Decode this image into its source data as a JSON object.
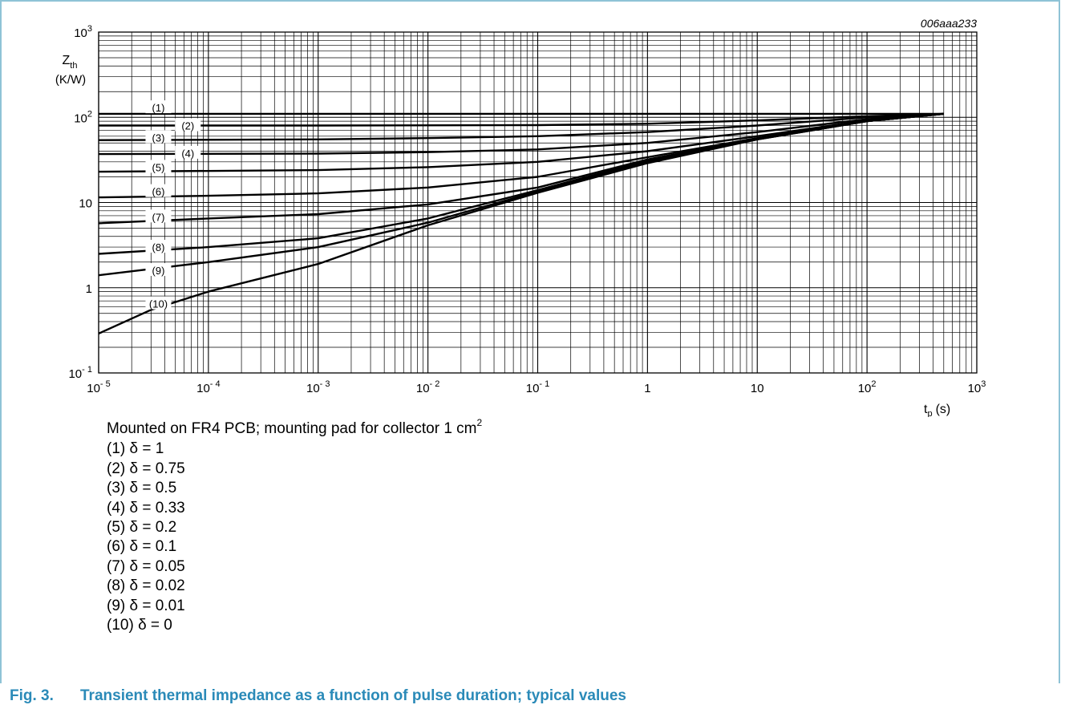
{
  "figure_id": "006aaa233",
  "caption": {
    "number": "Fig. 3.",
    "text": "Transient thermal impedance as a function of pulse duration; typical values"
  },
  "notes": {
    "mounting": "Mounted on FR4 PCB; mounting pad for collector 1 cm",
    "mounting_sup": "2",
    "legend": [
      "(1) δ = 1",
      "(2) δ = 0.75",
      "(3) δ = 0.5",
      "(4) δ = 0.33",
      "(5) δ = 0.2",
      "(6) δ = 0.1",
      "(7) δ = 0.05",
      "(8) δ = 0.02",
      "(9) δ = 0.01",
      "(10) δ = 0"
    ]
  },
  "colors": {
    "caption": "#2a8ab8",
    "frame": "#8fc3d6",
    "curve": "#000000",
    "grid": "#000000"
  },
  "chart_data": {
    "type": "line",
    "xlabel": "t",
    "xlabel_sub": "p",
    "xlabel_unit": "(s)",
    "ylabel": "Z",
    "ylabel_sub": "th",
    "ylabel_unit": "(K/W)",
    "x_scale": "log",
    "y_scale": "log",
    "xlim": [
      1e-05,
      1000
    ],
    "ylim": [
      0.1,
      1000
    ],
    "grid": true,
    "x_ticks": [
      {
        "value": 1e-05,
        "base": "10",
        "exp": "- 5"
      },
      {
        "value": 0.0001,
        "base": "10",
        "exp": "- 4"
      },
      {
        "value": 0.001,
        "base": "10",
        "exp": "- 3"
      },
      {
        "value": 0.01,
        "base": "10",
        "exp": "- 2"
      },
      {
        "value": 0.1,
        "base": "10",
        "exp": "- 1"
      },
      {
        "value": 1,
        "base": "1",
        "exp": ""
      },
      {
        "value": 10,
        "base": "10",
        "exp": ""
      },
      {
        "value": 100,
        "base": "10",
        "exp": "2"
      },
      {
        "value": 1000,
        "base": "10",
        "exp": "3"
      }
    ],
    "y_ticks": [
      {
        "value": 0.1,
        "base": "10",
        "exp": "- 1"
      },
      {
        "value": 1,
        "base": "1",
        "exp": ""
      },
      {
        "value": 10,
        "base": "10",
        "exp": ""
      },
      {
        "value": 100,
        "base": "10",
        "exp": "2"
      },
      {
        "value": 1000,
        "base": "10",
        "exp": "3"
      }
    ],
    "series": [
      {
        "name": "(1)",
        "label_at": 3.5e-05,
        "label_y": 130,
        "points": [
          [
            1e-05,
            110
          ],
          [
            500,
            110
          ]
        ]
      },
      {
        "name": "(2)",
        "label_at": 6.5e-05,
        "label_y": 80,
        "points": [
          [
            1e-05,
            80
          ],
          [
            0.001,
            80
          ],
          [
            0.1,
            81
          ],
          [
            1,
            84
          ],
          [
            10,
            92
          ],
          [
            100,
            103
          ],
          [
            500,
            110
          ]
        ]
      },
      {
        "name": "(3)",
        "label_at": 3.5e-05,
        "label_y": 58,
        "points": [
          [
            1e-05,
            54
          ],
          [
            0.001,
            55
          ],
          [
            0.01,
            57
          ],
          [
            0.1,
            60
          ],
          [
            1,
            67
          ],
          [
            10,
            80
          ],
          [
            100,
            100
          ],
          [
            500,
            110
          ]
        ]
      },
      {
        "name": "(4)",
        "label_at": 6.5e-05,
        "label_y": 38,
        "points": [
          [
            1e-05,
            37
          ],
          [
            0.001,
            37.5
          ],
          [
            0.01,
            39
          ],
          [
            0.1,
            42
          ],
          [
            1,
            50
          ],
          [
            10,
            67
          ],
          [
            100,
            95
          ],
          [
            500,
            110
          ]
        ]
      },
      {
        "name": "(5)",
        "label_at": 3.5e-05,
        "label_y": 26,
        "points": [
          [
            1e-05,
            23
          ],
          [
            0.001,
            24
          ],
          [
            0.01,
            26
          ],
          [
            0.1,
            30
          ],
          [
            1,
            40
          ],
          [
            10,
            60
          ],
          [
            100,
            92
          ],
          [
            500,
            110
          ]
        ]
      },
      {
        "name": "(6)",
        "label_at": 3.5e-05,
        "label_y": 13.5,
        "points": [
          [
            1e-05,
            11.5
          ],
          [
            0.0001,
            12
          ],
          [
            0.001,
            12.8
          ],
          [
            0.01,
            15
          ],
          [
            0.1,
            20
          ],
          [
            1,
            34
          ],
          [
            10,
            57
          ],
          [
            100,
            90
          ],
          [
            500,
            110
          ]
        ]
      },
      {
        "name": "(7)",
        "label_at": 3.5e-05,
        "label_y": 6.8,
        "points": [
          [
            1e-05,
            5.7
          ],
          [
            0.0001,
            6.5
          ],
          [
            0.001,
            7.3
          ],
          [
            0.01,
            9.5
          ],
          [
            0.1,
            15
          ],
          [
            1,
            32
          ],
          [
            10,
            56
          ],
          [
            100,
            90
          ],
          [
            500,
            110
          ]
        ]
      },
      {
        "name": "(8)",
        "label_at": 3.5e-05,
        "label_y": 3.0,
        "points": [
          [
            1e-05,
            2.5
          ],
          [
            0.0001,
            3.0
          ],
          [
            0.001,
            3.8
          ],
          [
            0.01,
            6.5
          ],
          [
            0.1,
            14
          ],
          [
            1,
            31
          ],
          [
            10,
            56
          ],
          [
            100,
            90
          ],
          [
            500,
            110
          ]
        ]
      },
      {
        "name": "(9)",
        "label_at": 3.5e-05,
        "label_y": 1.6,
        "points": [
          [
            1e-05,
            1.4
          ],
          [
            0.0001,
            2.0
          ],
          [
            0.001,
            3.0
          ],
          [
            0.01,
            5.8
          ],
          [
            0.1,
            13.5
          ],
          [
            1,
            30
          ],
          [
            10,
            55
          ],
          [
            100,
            90
          ],
          [
            500,
            110
          ]
        ]
      },
      {
        "name": "(10)",
        "label_at": 3.5e-05,
        "label_y": 0.65,
        "points": [
          [
            1e-05,
            0.29
          ],
          [
            3e-05,
            0.55
          ],
          [
            0.0001,
            0.9
          ],
          [
            0.001,
            1.9
          ],
          [
            0.01,
            5.4
          ],
          [
            0.1,
            13
          ],
          [
            1,
            29
          ],
          [
            10,
            55
          ],
          [
            100,
            90
          ],
          [
            500,
            110
          ]
        ]
      }
    ]
  }
}
